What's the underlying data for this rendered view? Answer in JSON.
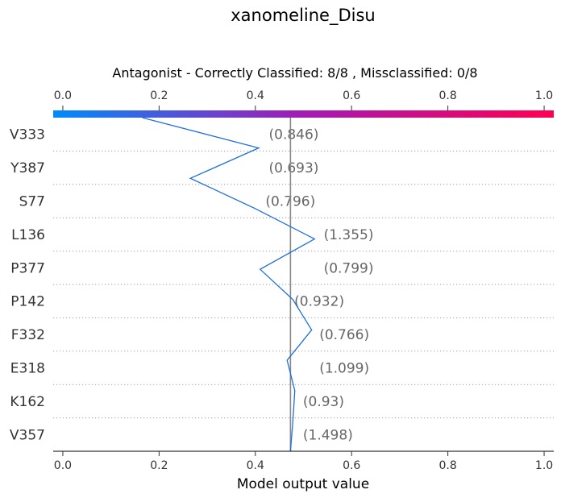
{
  "chart_data": {
    "type": "line",
    "title": "xanomeline_Disu",
    "subtitle": "Antagonist - Correctly Classified: 8/8 , Missclassified: 0/8",
    "xlabel": "Model output value",
    "xlim": [
      -0.02,
      1.02
    ],
    "xticks": [
      "0.0",
      "0.2",
      "0.4",
      "0.6",
      "0.8",
      "1.0"
    ],
    "xtick_values": [
      0.0,
      0.2,
      0.4,
      0.6,
      0.8,
      1.0
    ],
    "base_value": 0.473,
    "colorbar": {
      "start": "#008bfb",
      "mid": "#a41ab4",
      "end": "#ff0052"
    },
    "line_color": "#1e6fdc",
    "features": [
      {
        "name": "V333",
        "value_label": "(0.846)"
      },
      {
        "name": "Y387",
        "value_label": "(0.693)"
      },
      {
        "name": "S77",
        "value_label": "(0.796)"
      },
      {
        "name": "L136",
        "value_label": "(1.355)"
      },
      {
        "name": "P377",
        "value_label": "(0.799)"
      },
      {
        "name": "P142",
        "value_label": "(0.932)"
      },
      {
        "name": "F332",
        "value_label": "(0.766)"
      },
      {
        "name": "E318",
        "value_label": "(1.099)"
      },
      {
        "name": "K162",
        "value_label": "(0.93)"
      },
      {
        "name": "V357",
        "value_label": "(1.498)"
      }
    ],
    "path_values": [
      0.165,
      0.407,
      0.265,
      0.4,
      0.523,
      0.41,
      0.478,
      0.517,
      0.466,
      0.482,
      0.478,
      0.473
    ],
    "label_x_values": [
      0.428,
      0.428,
      0.421,
      0.542,
      0.542,
      0.481,
      0.533,
      0.533,
      0.499,
      0.499
    ]
  }
}
